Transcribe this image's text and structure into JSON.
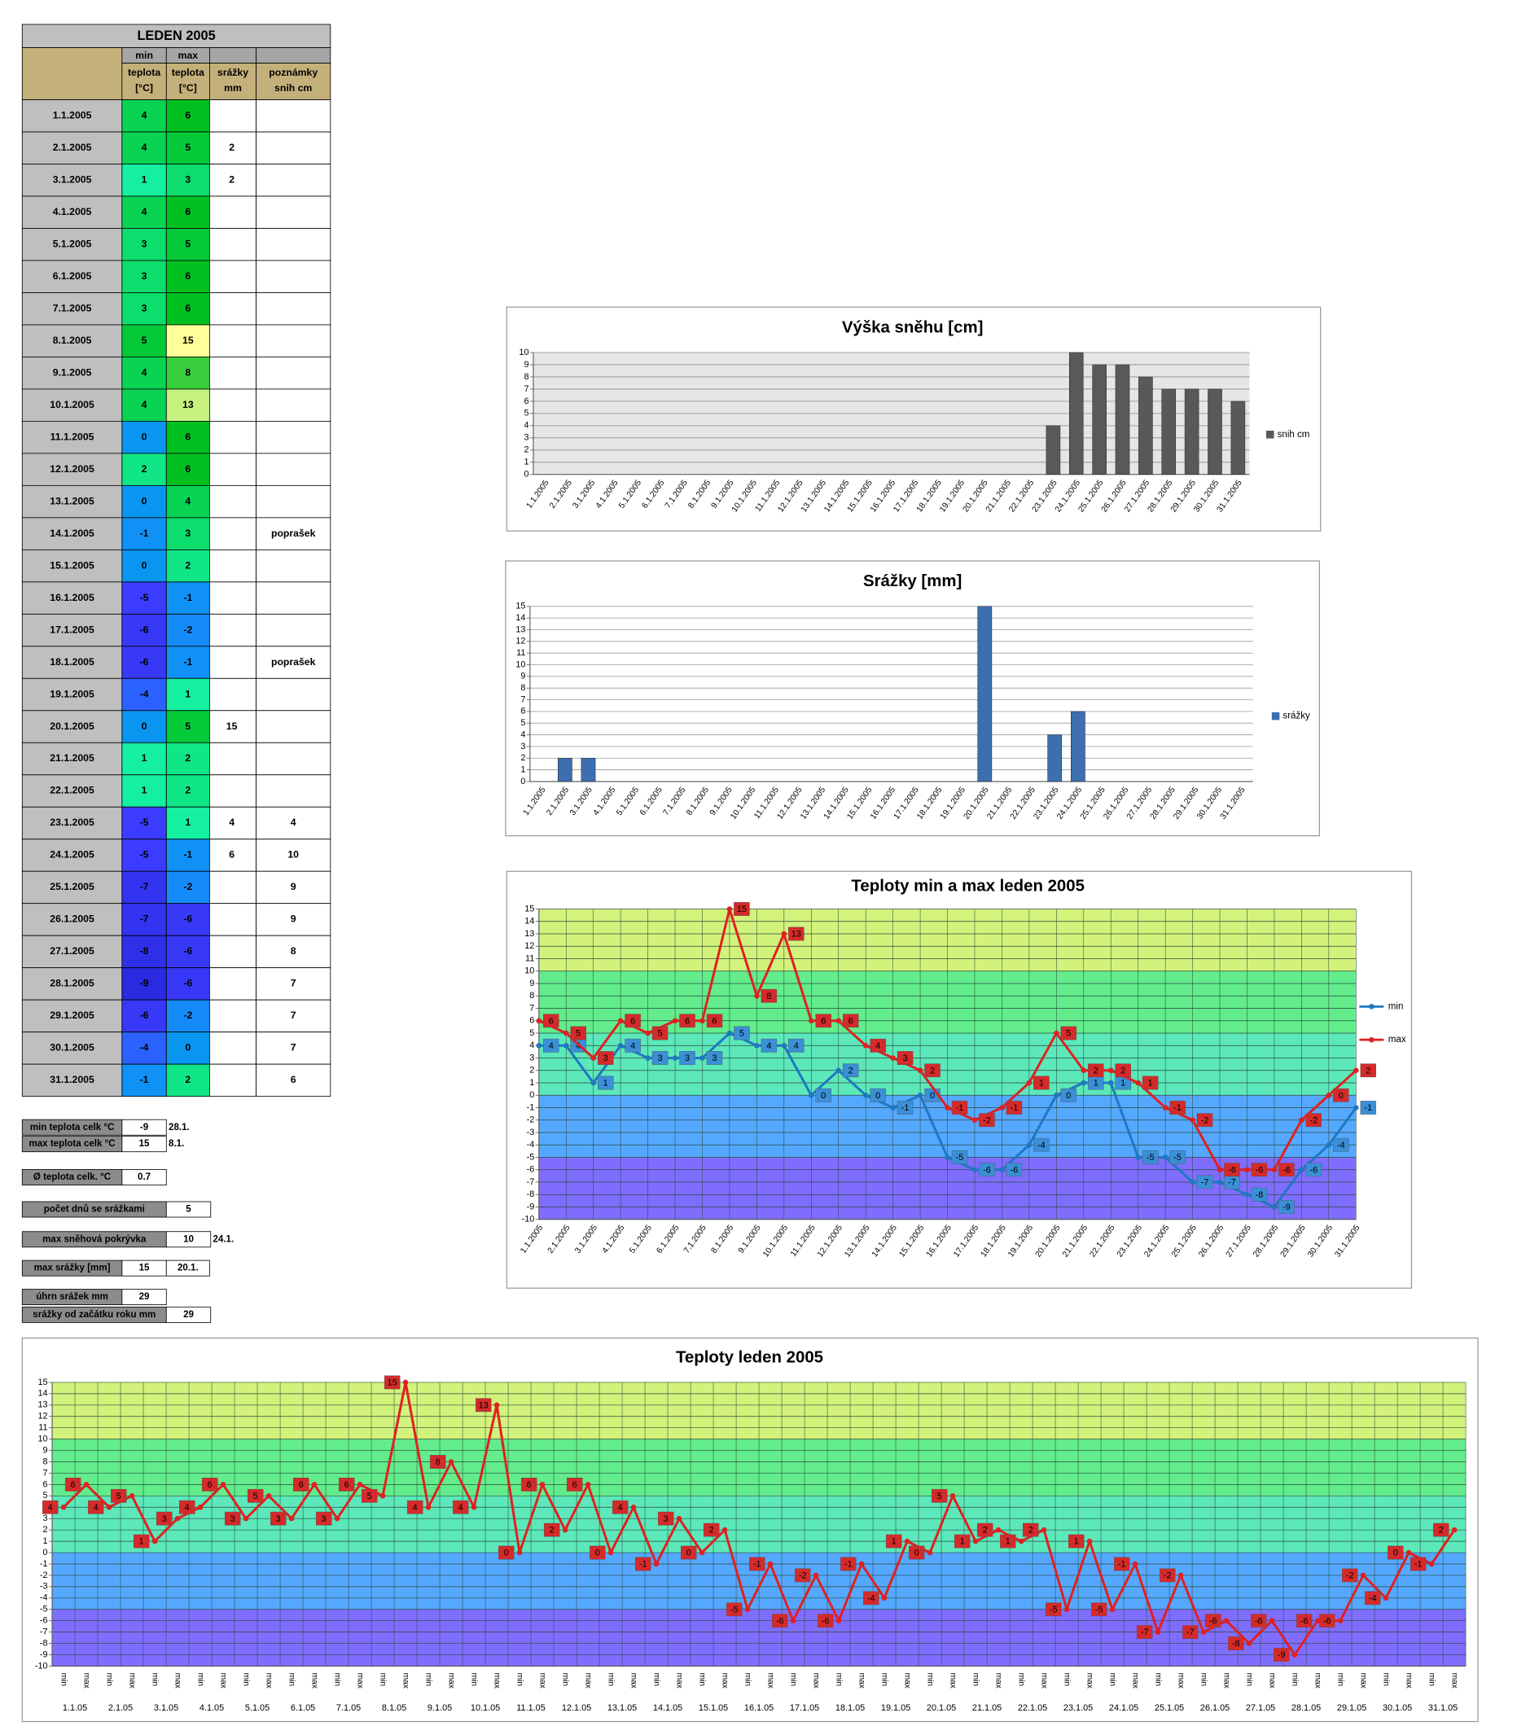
{
  "table": {
    "title": "LEDEN 2005",
    "columns": [
      {
        "top": "min",
        "lines": [
          "teplota",
          "[°C]"
        ]
      },
      {
        "top": "max",
        "lines": [
          "teplota",
          "[°C]"
        ]
      },
      {
        "lines": [
          "srážky",
          "mm"
        ]
      },
      {
        "lines": [
          "poznámky",
          "snih cm"
        ]
      }
    ],
    "color_scale": [
      {
        "value": -9,
        "color": "#2a2ae0"
      },
      {
        "value": -5,
        "color": "#3c3cff"
      },
      {
        "value": -3,
        "color": "#1a86ff"
      },
      {
        "value": 0,
        "color": "#0a96f0"
      },
      {
        "value": 1,
        "color": "#14f0a0"
      },
      {
        "value": 6,
        "color": "#00c020"
      },
      {
        "value": 15,
        "color": "#ffff99"
      }
    ],
    "rows": [
      [
        "1.1.2005",
        4,
        6,
        null,
        null
      ],
      [
        "2.1.2005",
        4,
        5,
        2,
        null
      ],
      [
        "3.1.2005",
        1,
        3,
        2,
        null
      ],
      [
        "4.1.2005",
        4,
        6,
        null,
        null
      ],
      [
        "5.1.2005",
        3,
        5,
        null,
        null
      ],
      [
        "6.1.2005",
        3,
        6,
        null,
        null
      ],
      [
        "7.1.2005",
        3,
        6,
        null,
        null
      ],
      [
        "8.1.2005",
        5,
        15,
        null,
        null
      ],
      [
        "9.1.2005",
        4,
        8,
        null,
        null
      ],
      [
        "10.1.2005",
        4,
        13,
        null,
        null
      ],
      [
        "11.1.2005",
        0,
        6,
        null,
        null
      ],
      [
        "12.1.2005",
        2,
        6,
        null,
        null
      ],
      [
        "13.1.2005",
        0,
        4,
        null,
        null
      ],
      [
        "14.1.2005",
        -1,
        3,
        null,
        "poprašek"
      ],
      [
        "15.1.2005",
        0,
        2,
        null,
        null
      ],
      [
        "16.1.2005",
        -5,
        -1,
        null,
        null
      ],
      [
        "17.1.2005",
        -6,
        -2,
        null,
        null
      ],
      [
        "18.1.2005",
        -6,
        -1,
        null,
        "poprašek"
      ],
      [
        "19.1.2005",
        -4,
        1,
        null,
        null
      ],
      [
        "20.1.2005",
        0,
        5,
        15,
        null
      ],
      [
        "21.1.2005",
        1,
        2,
        null,
        null
      ],
      [
        "22.1.2005",
        1,
        2,
        null,
        null
      ],
      [
        "23.1.2005",
        -5,
        1,
        4,
        4
      ],
      [
        "24.1.2005",
        -5,
        -1,
        6,
        10
      ],
      [
        "25.1.2005",
        -7,
        -2,
        null,
        9
      ],
      [
        "26.1.2005",
        -7,
        -6,
        null,
        9
      ],
      [
        "27.1.2005",
        -8,
        -6,
        null,
        8
      ],
      [
        "28.1.2005",
        -9,
        -6,
        null,
        7
      ],
      [
        "29.1.2005",
        -6,
        -2,
        null,
        7
      ],
      [
        "30.1.2005",
        -4,
        0,
        null,
        7
      ],
      [
        "31.1.2005",
        -1,
        2,
        null,
        6
      ]
    ]
  },
  "summary": [
    {
      "label": "min teplota celk °C",
      "value": -9,
      "note": "28.1."
    },
    {
      "label": "max teplota celk °C",
      "value": 15,
      "note": "8.1."
    },
    {
      "label": "Ø teplota celk. °C",
      "value": 0.7
    },
    {
      "label": "počet dnů se srážkami",
      "value": 5
    },
    {
      "label": "max sněhová pokrývka",
      "value": 10,
      "note": "24.1."
    },
    {
      "label": "max srážky [mm]",
      "value": 15,
      "note": "20.1."
    },
    {
      "label": "úhrn srážek  mm",
      "value": 29
    },
    {
      "label": "srážky od začátku roku mm",
      "value": 29
    }
  ],
  "chart_data": [
    {
      "type": "bar",
      "title": "Výška sněhu [cm]",
      "categories": [
        "1.1.2005",
        "2.1.2005",
        "3.1.2005",
        "4.1.2005",
        "5.1.2005",
        "6.1.2005",
        "7.1.2005",
        "8.1.2005",
        "9.1.2005",
        "10.1.2005",
        "11.1.2005",
        "12.1.2005",
        "13.1.2005",
        "14.1.2005",
        "15.1.2005",
        "16.1.2005",
        "17.1.2005",
        "18.1.2005",
        "19.1.2005",
        "20.1.2005",
        "21.1.2005",
        "22.1.2005",
        "23.1.2005",
        "24.1.2005",
        "25.1.2005",
        "26.1.2005",
        "27.1.2005",
        "28.1.2005",
        "29.1.2005",
        "30.1.2005",
        "31.1.2005"
      ],
      "series": [
        {
          "name": "snih cm",
          "color": "#595959",
          "values": [
            null,
            null,
            null,
            null,
            null,
            null,
            null,
            null,
            null,
            null,
            null,
            null,
            null,
            null,
            null,
            null,
            null,
            null,
            null,
            null,
            null,
            null,
            4,
            10,
            9,
            9,
            8,
            7,
            7,
            7,
            6
          ]
        }
      ],
      "ylim": [
        0,
        10
      ],
      "yticks": [
        0,
        1,
        2,
        3,
        4,
        5,
        6,
        7,
        8,
        9,
        10
      ],
      "grid": true,
      "plot_background": "#e6e6e6",
      "legend": "right"
    },
    {
      "type": "bar",
      "title": "Srážky [mm]",
      "categories": [
        "1.1.2005",
        "2.1.2005",
        "3.1.2005",
        "4.1.2005",
        "5.1.2005",
        "6.1.2005",
        "7.1.2005",
        "8.1.2005",
        "9.1.2005",
        "10.1.2005",
        "11.1.2005",
        "12.1.2005",
        "13.1.2005",
        "14.1.2005",
        "15.1.2005",
        "16.1.2005",
        "17.1.2005",
        "18.1.2005",
        "19.1.2005",
        "20.1.2005",
        "21.1.2005",
        "22.1.2005",
        "23.1.2005",
        "24.1.2005",
        "25.1.2005",
        "26.1.2005",
        "27.1.2005",
        "28.1.2005",
        "29.1.2005",
        "30.1.2005",
        "31.1.2005"
      ],
      "series": [
        {
          "name": "srážky",
          "color": "#3d6fb0",
          "values": [
            null,
            2,
            2,
            null,
            null,
            null,
            null,
            null,
            null,
            null,
            null,
            null,
            null,
            null,
            null,
            null,
            null,
            null,
            null,
            15,
            null,
            null,
            4,
            6,
            null,
            null,
            null,
            null,
            null,
            null,
            null
          ]
        }
      ],
      "ylim": [
        0,
        15
      ],
      "yticks": [
        0,
        1,
        2,
        3,
        4,
        5,
        6,
        7,
        8,
        9,
        10,
        11,
        12,
        13,
        14,
        15
      ],
      "grid": true,
      "legend": "right"
    },
    {
      "type": "line",
      "title": "Teploty min a max leden 2005",
      "categories": [
        "1.1.2005",
        "2.1.2005",
        "3.1.2005",
        "4.1.2005",
        "5.1.2005",
        "6.1.2005",
        "7.1.2005",
        "8.1.2005",
        "9.1.2005",
        "10.1.2005",
        "11.1.2005",
        "12.1.2005",
        "13.1.2005",
        "14.1.2005",
        "15.1.2005",
        "16.1.2005",
        "17.1.2005",
        "18.1.2005",
        "19.1.2005",
        "20.1.2005",
        "21.1.2005",
        "22.1.2005",
        "23.1.2005",
        "24.1.2005",
        "25.1.2005",
        "26.1.2005",
        "27.1.2005",
        "28.1.2005",
        "29.1.2005",
        "30.1.2005",
        "31.1.2005"
      ],
      "series": [
        {
          "name": "min",
          "color": "#1f78c0",
          "label_color": "#3a8fd6",
          "values": [
            4,
            4,
            1,
            4,
            3,
            3,
            3,
            5,
            4,
            4,
            0,
            2,
            0,
            -1,
            0,
            -5,
            -6,
            -6,
            -4,
            0,
            1,
            1,
            -5,
            -5,
            -7,
            -7,
            -8,
            -9,
            -6,
            -4,
            -1
          ]
        },
        {
          "name": "max",
          "color": "#e02020",
          "label_color": "#d42a2a",
          "values": [
            6,
            5,
            3,
            6,
            5,
            6,
            6,
            15,
            8,
            13,
            6,
            6,
            4,
            3,
            2,
            -1,
            -2,
            -1,
            1,
            5,
            2,
            2,
            1,
            -1,
            -2,
            -6,
            -6,
            -6,
            -2,
            0,
            2
          ]
        }
      ],
      "ylim": [
        -10,
        15
      ],
      "yticks": [
        -10,
        -9,
        -8,
        -7,
        -6,
        -5,
        -4,
        -3,
        -2,
        -1,
        0,
        1,
        2,
        3,
        4,
        5,
        6,
        7,
        8,
        9,
        10,
        11,
        12,
        13,
        14,
        15
      ],
      "grid": true,
      "data_labels": true,
      "legend": "right",
      "bands": [
        {
          "from": -10,
          "to": -5,
          "color": "#7f6dff"
        },
        {
          "from": -5,
          "to": 0,
          "color": "#55a8ff"
        },
        {
          "from": 0,
          "to": 5,
          "color": "#5ce8ba"
        },
        {
          "from": 5,
          "to": 10,
          "color": "#62ec8c"
        },
        {
          "from": 10,
          "to": 15,
          "color": "#d2f27c"
        }
      ]
    },
    {
      "type": "line",
      "title": "Teploty leden 2005",
      "categories": [
        "min",
        "max",
        "min",
        "max",
        "min",
        "max",
        "min",
        "max",
        "min",
        "max",
        "min",
        "max",
        "min",
        "max",
        "min",
        "max",
        "min",
        "max",
        "min",
        "max",
        "min",
        "max",
        "min",
        "max",
        "min",
        "max",
        "min",
        "max",
        "min",
        "max",
        "min",
        "max",
        "min",
        "max",
        "min",
        "max",
        "min",
        "max",
        "min",
        "max",
        "min",
        "max",
        "min",
        "max",
        "min",
        "max",
        "min",
        "max",
        "min",
        "max",
        "min",
        "max",
        "min",
        "max",
        "min",
        "max",
        "min",
        "max",
        "min",
        "max",
        "min",
        "max"
      ],
      "category_groups": [
        "1.1.05",
        "2.1.05",
        "3.1.05",
        "4.1.05",
        "5.1.05",
        "6.1.05",
        "7.1.05",
        "8.1.05",
        "9.1.05",
        "10.1.05",
        "11.1.05",
        "12.1.05",
        "13.1.05",
        "14.1.05",
        "15.1.05",
        "16.1.05",
        "17.1.05",
        "18.1.05",
        "19.1.05",
        "20.1.05",
        "21.1.05",
        "22.1.05",
        "23.1.05",
        "24.1.05",
        "25.1.05",
        "26.1.05",
        "27.1.05",
        "28.1.05",
        "29.1.05",
        "30.1.05",
        "31.1.05"
      ],
      "series": [
        {
          "color": "#e02020",
          "label_color": "#d42a2a",
          "values": [
            4,
            6,
            4,
            5,
            1,
            3,
            4,
            6,
            3,
            5,
            3,
            6,
            3,
            6,
            5,
            15,
            4,
            8,
            4,
            13,
            0,
            6,
            2,
            6,
            0,
            4,
            -1,
            3,
            0,
            2,
            -5,
            -1,
            -6,
            -2,
            -6,
            -1,
            -4,
            1,
            0,
            5,
            1,
            2,
            1,
            2,
            -5,
            1,
            -5,
            -1,
            -7,
            -2,
            -7,
            -6,
            -8,
            -6,
            -9,
            -6,
            -6,
            -2,
            -4,
            0,
            -1,
            2
          ]
        }
      ],
      "ylim": [
        -10,
        15
      ],
      "yticks": [
        -10,
        -9,
        -8,
        -7,
        -6,
        -5,
        -4,
        -3,
        -2,
        -1,
        0,
        1,
        2,
        3,
        4,
        5,
        6,
        7,
        8,
        9,
        10,
        11,
        12,
        13,
        14,
        15
      ],
      "grid": true,
      "data_labels": true,
      "bands": [
        {
          "from": -10,
          "to": -5,
          "color": "#7f6dff"
        },
        {
          "from": -5,
          "to": 0,
          "color": "#55a8ff"
        },
        {
          "from": 0,
          "to": 5,
          "color": "#5ce8ba"
        },
        {
          "from": 5,
          "to": 10,
          "color": "#62ec8c"
        },
        {
          "from": 10,
          "to": 15,
          "color": "#d2f27c"
        }
      ]
    }
  ]
}
